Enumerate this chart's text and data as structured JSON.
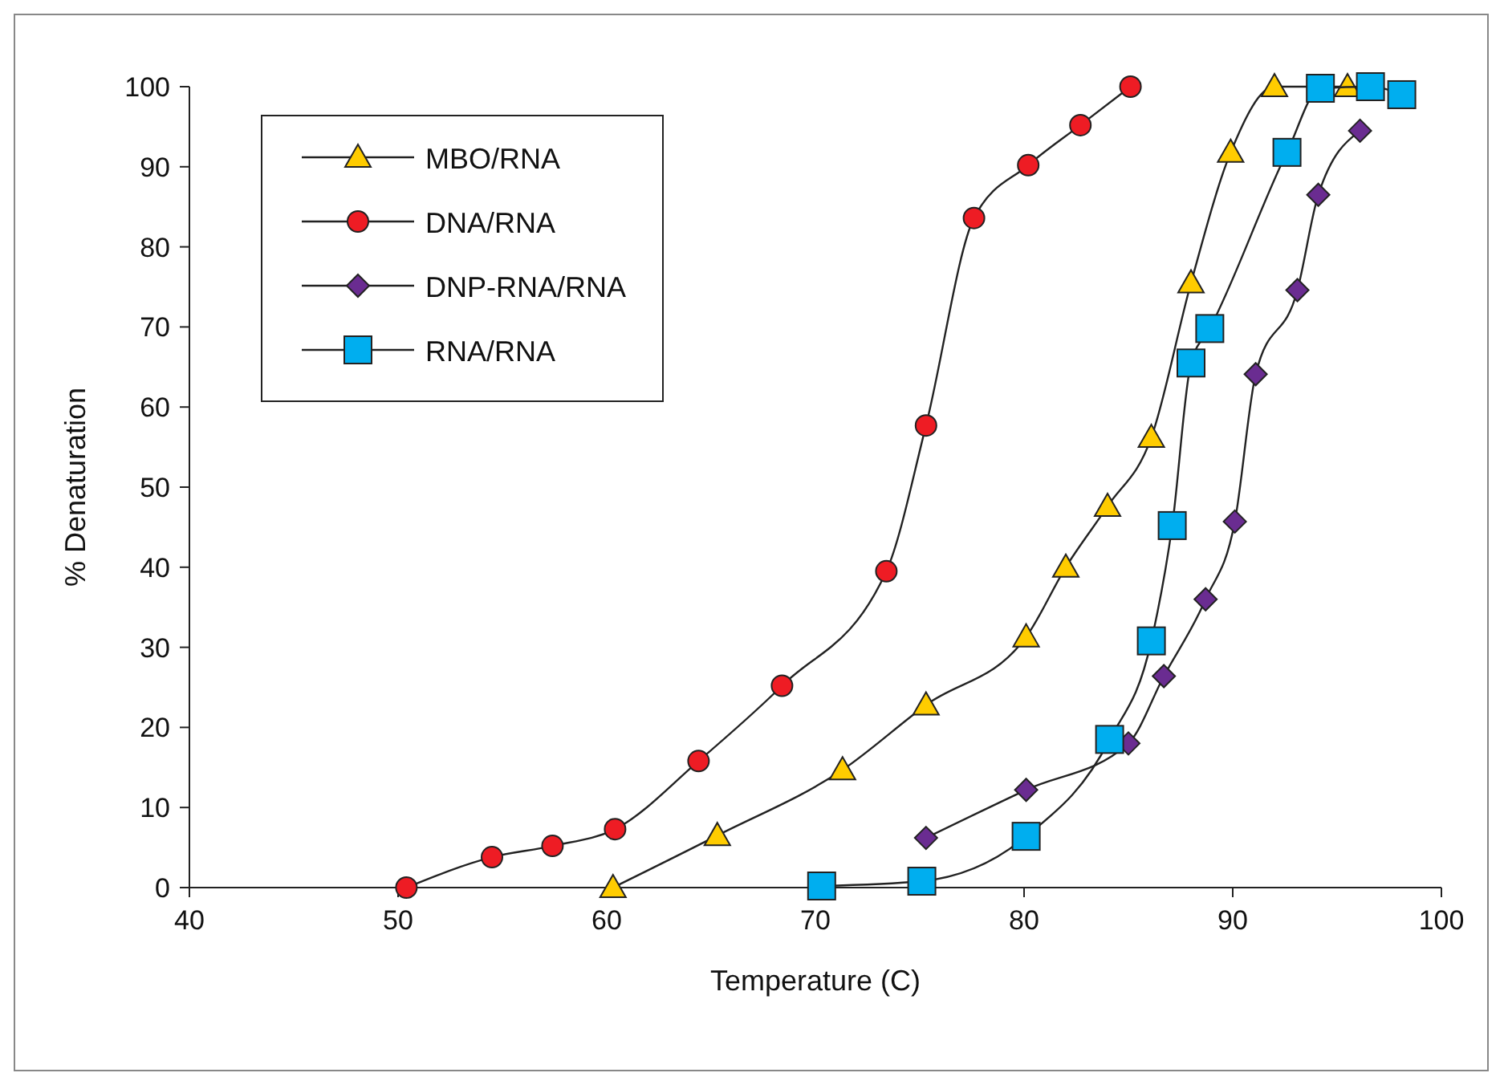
{
  "chart_data": {
    "type": "line",
    "xlabel": "Temperature (C)",
    "ylabel": "% Denaturation",
    "xlim": [
      40,
      100
    ],
    "xticks": [
      40,
      50,
      60,
      70,
      80,
      90,
      100
    ],
    "ylim": [
      0,
      100
    ],
    "yticks": [
      0,
      10,
      20,
      30,
      40,
      50,
      60,
      70,
      80,
      90,
      100
    ],
    "grid": false,
    "legend": "top left",
    "series": [
      {
        "name": "MBO/RNA",
        "color": "#ffcc00",
        "marker": "triangle",
        "x": [
          60.3,
          65.3,
          71.3,
          75.3,
          80.1,
          82.0,
          84.0,
          86.1,
          88.0,
          89.9,
          92.0,
          95.5
        ],
        "values": [
          0,
          6.5,
          14.7,
          22.8,
          31.3,
          40,
          47.6,
          56.2,
          75.5,
          91.8,
          100,
          100
        ]
      },
      {
        "name": "DNA/RNA",
        "color": "#ee1c24",
        "marker": "circle",
        "x": [
          50.4,
          54.5,
          57.4,
          60.4,
          64.4,
          68.4,
          73.4,
          75.3,
          77.6,
          80.2,
          82.7,
          85.1
        ],
        "values": [
          0,
          3.8,
          5.2,
          7.3,
          15.8,
          25.2,
          39.5,
          57.7,
          83.6,
          90.2,
          95.2,
          100
        ]
      },
      {
        "name": "DNP-RNA/RNA",
        "color": "#6a2c91",
        "marker": "diamond",
        "x": [
          75.3,
          80.1,
          85.0,
          86.7,
          88.7,
          90.1,
          91.1,
          93.1,
          94.1,
          96.1
        ],
        "values": [
          6.2,
          12.2,
          18,
          26.4,
          36,
          45.7,
          64.1,
          74.6,
          86.5,
          94.5
        ]
      },
      {
        "name": "RNA/RNA",
        "color": "#00aeef",
        "marker": "square",
        "x": [
          70.3,
          75.1,
          80.1,
          84.1,
          86.1,
          87.1,
          88.0,
          88.9,
          92.6,
          94.2,
          96.6,
          98.1
        ],
        "values": [
          0.2,
          0.8,
          6.4,
          18.5,
          30.8,
          45.2,
          65.5,
          69.8,
          91.8,
          99.8,
          100,
          99
        ]
      }
    ]
  }
}
